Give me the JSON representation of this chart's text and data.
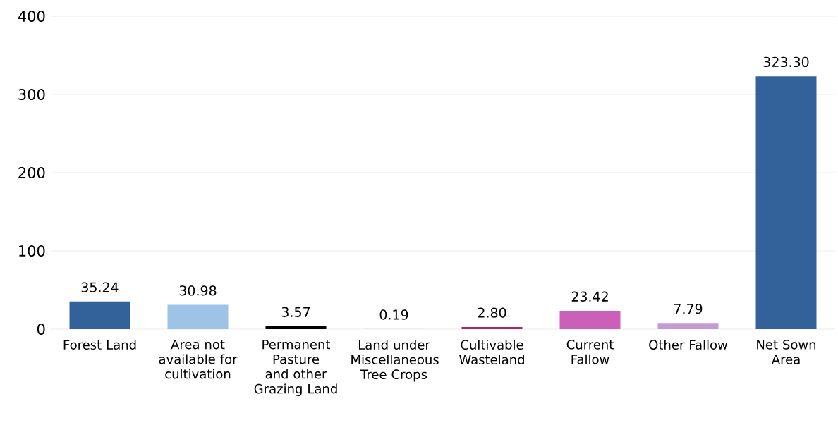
{
  "chart_data": {
    "type": "bar",
    "categories": [
      "Forest Land",
      "Area not available for cultivation",
      "Permanent Pasture and other Grazing Land",
      "Land under Miscellaneous Tree Crops",
      "Cultivable Wasteland",
      "Current Fallow",
      "Other Fallow",
      "Net Sown Area"
    ],
    "values": [
      35.24,
      30.98,
      3.57,
      0.19,
      2.8,
      23.42,
      7.79,
      323.3
    ],
    "value_labels": [
      "35.24",
      "30.98",
      "3.57",
      "0.19",
      "2.80",
      "23.42",
      "7.79",
      "323.30"
    ],
    "colors": [
      "#33629a",
      "#9dc3e6",
      "#000000",
      "#d9d9d9",
      "#9e2a74",
      "#cc5fba",
      "#c39bd3",
      "#33629a"
    ],
    "ylim": [
      0,
      400
    ],
    "yticks": [
      0,
      100,
      200,
      300,
      400
    ],
    "grid": "y"
  }
}
